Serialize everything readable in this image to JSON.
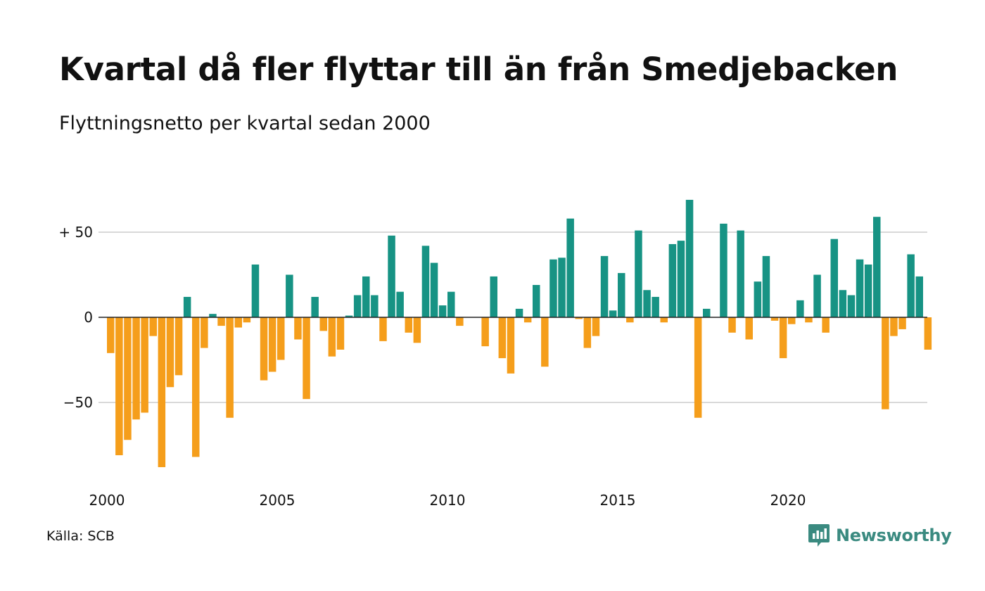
{
  "title": "Kvartal då fler flyttar till än från Smedjebacken",
  "subtitle": "Flyttningsnetto per kvartal sedan 2000",
  "source": "Källa: SCB",
  "brand": {
    "name": "Newsworthy",
    "icon": "newsworthy-logo-icon",
    "color": "#3a8a80"
  },
  "chart_data": {
    "type": "bar",
    "title": "Kvartal då fler flyttar till än från Smedjebacken",
    "subtitle": "Flyttningsnetto per kvartal sedan 2000",
    "xlabel": "",
    "ylabel": "",
    "x_start": "2000-Q1",
    "x_ticks": [
      "2000",
      "2005",
      "2010",
      "2015",
      "2020"
    ],
    "y_ticks": [
      {
        "value": 50,
        "label": "+ 50"
      },
      {
        "value": 0,
        "label": "0"
      },
      {
        "value": -50,
        "label": "−50"
      }
    ],
    "ylim": [
      -95,
      75
    ],
    "grid": true,
    "colors": {
      "positive": "#179384",
      "negative": "#f59e1b",
      "grid": "#d9d9d9",
      "zero": "#222222"
    },
    "values": [
      -21,
      -81,
      -72,
      -60,
      -56,
      -11,
      -88,
      -41,
      -34,
      12,
      -82,
      -18,
      2,
      -5,
      -59,
      -6,
      -3,
      31,
      -37,
      -32,
      -25,
      25,
      -13,
      -48,
      12,
      -8,
      -23,
      -19,
      1,
      13,
      24,
      13,
      -14,
      48,
      15,
      -9,
      -15,
      42,
      32,
      7,
      15,
      -5,
      0,
      0,
      -17,
      24,
      -24,
      -33,
      5,
      -3,
      19,
      -29,
      34,
      35,
      58,
      -1,
      -18,
      -11,
      36,
      4,
      26,
      -3,
      51,
      16,
      12,
      -3,
      43,
      45,
      69,
      -59,
      5,
      0,
      55,
      -9,
      51,
      -13,
      21,
      36,
      -2,
      -24,
      -4,
      10,
      -3,
      25,
      -9,
      46,
      16,
      13,
      34,
      31,
      59,
      -54,
      -11,
      -7,
      37,
      24,
      -19
    ]
  }
}
